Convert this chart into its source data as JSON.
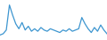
{
  "values": [
    4,
    5,
    8,
    28,
    20,
    13,
    9,
    14,
    8,
    11,
    7,
    9,
    7,
    10,
    8,
    7,
    9,
    8,
    7,
    6,
    8,
    7,
    9,
    7,
    8,
    9,
    18,
    13,
    9,
    6,
    10,
    7,
    12,
    8,
    5
  ],
  "line_color": "#3d96d0",
  "background_color": "#ffffff",
  "ylim_min": 0,
  "ylim_max": 32,
  "linewidth": 0.9
}
